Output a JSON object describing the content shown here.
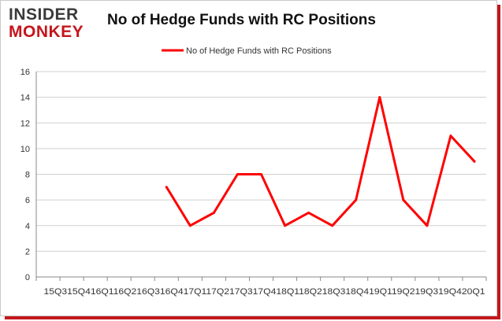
{
  "logo": {
    "line1": "INSIDER",
    "line2": "MONKEY"
  },
  "colors": {
    "series": "#ff0000",
    "brand_red": "#c4161c",
    "grid": "#d0d0d0",
    "axis": "#888888"
  },
  "chart_data": {
    "type": "line",
    "title": "No of Hedge Funds with RC Positions",
    "xlabel": "",
    "ylabel": "",
    "ylim": [
      0,
      16
    ],
    "yticks": [
      0,
      2,
      4,
      6,
      8,
      10,
      12,
      14,
      16
    ],
    "grid": "horizontal",
    "legend_position": "top-center",
    "x_tick_text": "15Q315Q416Q116Q216Q316Q417Q117Q217Q317Q418Q118Q218Q318Q419Q119Q219Q319Q420Q1",
    "categories": [
      "15Q3",
      "15Q4",
      "16Q1",
      "16Q2",
      "16Q3",
      "16Q4",
      "17Q1",
      "17Q2",
      "17Q3",
      "17Q4",
      "18Q1",
      "18Q2",
      "18Q3",
      "18Q4",
      "19Q1",
      "19Q2",
      "19Q3",
      "19Q4",
      "20Q1"
    ],
    "series": [
      {
        "name": "No of Hedge Funds with RC Positions",
        "values": [
          null,
          null,
          null,
          null,
          null,
          7,
          4,
          5,
          8,
          8,
          4,
          5,
          4,
          6,
          14,
          6,
          4,
          11,
          9
        ]
      }
    ]
  }
}
